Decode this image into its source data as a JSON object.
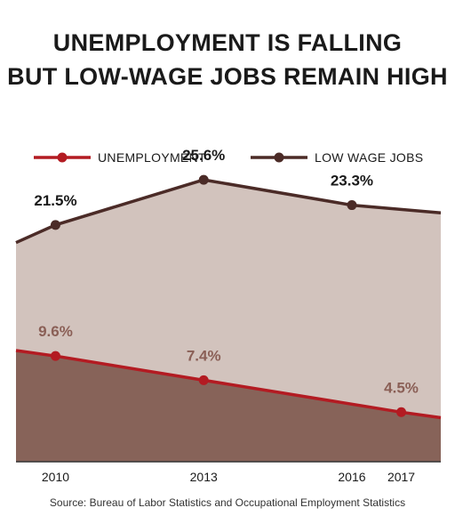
{
  "title_line1": "UNEMPLOYMENT IS FALLING",
  "title_line2": "BUT LOW-WAGE JOBS REMAIN HIGH",
  "source": "Source: Bureau of Labor Statistics and Occupational Employment Statistics",
  "colors": {
    "unemployment_line": "#b31b22",
    "low_wage_line": "#4b2b27",
    "unemployment_fill": "#876359",
    "low_wage_fill": "#d2c3bd",
    "unemployment_label": "#8a5f56",
    "low_wage_label": "#1a1a1a"
  },
  "chart_data": {
    "type": "area",
    "title": "UNEMPLOYMENT IS FALLING BUT LOW-WAGE JOBS REMAIN HIGH",
    "xlabel": "",
    "ylabel": "",
    "x_ticks": [
      "2010",
      "2013",
      "2016",
      "2017"
    ],
    "x_range": [
      2009.2,
      2017.8
    ],
    "ylim": [
      0,
      29
    ],
    "grid": false,
    "legend_position": "top",
    "series": [
      {
        "name": "UNEMPLOYMENT",
        "points": [
          {
            "x": 2009.2,
            "y": 10.1,
            "label": ""
          },
          {
            "x": 2010,
            "y": 9.6,
            "label": "9.6%"
          },
          {
            "x": 2013,
            "y": 7.4,
            "label": "7.4%"
          },
          {
            "x": 2017,
            "y": 4.5,
            "label": "4.5%"
          },
          {
            "x": 2017.8,
            "y": 4.0,
            "label": ""
          }
        ]
      },
      {
        "name": "LOW WAGE JOBS",
        "points": [
          {
            "x": 2009.2,
            "y": 19.9,
            "label": ""
          },
          {
            "x": 2010,
            "y": 21.5,
            "label": "21.5%"
          },
          {
            "x": 2013,
            "y": 25.6,
            "label": "25.6%"
          },
          {
            "x": 2016,
            "y": 23.3,
            "label": "23.3%"
          },
          {
            "x": 2017.8,
            "y": 22.6,
            "label": ""
          }
        ]
      }
    ]
  }
}
